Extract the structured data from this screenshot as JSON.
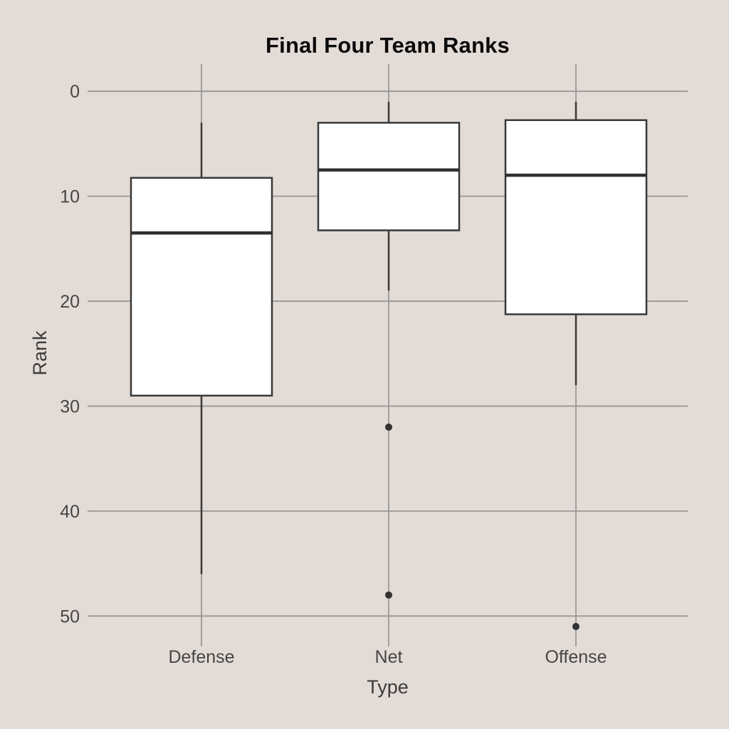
{
  "chart_data": {
    "type": "boxplot",
    "title": "Final Four Team Ranks",
    "xlabel": "Type",
    "ylabel": "Rank",
    "categories": [
      "Defense",
      "Net",
      "Offense"
    ],
    "y_ticks": [
      0,
      10,
      20,
      30,
      40,
      50
    ],
    "y_axis_reversed": true,
    "ylim": [
      -2.6,
      52.9
    ],
    "grid": "on",
    "series": [
      {
        "category": "Defense",
        "whisker_min": 3,
        "q1": 8.25,
        "median": 13.5,
        "q3": 29,
        "whisker_max": 46,
        "outliers": []
      },
      {
        "category": "Net",
        "whisker_min": 1,
        "q1": 3,
        "median": 7.5,
        "q3": 13.25,
        "whisker_max": 19,
        "outliers": [
          32,
          48
        ]
      },
      {
        "category": "Offense",
        "whisker_min": 1,
        "q1": 2.75,
        "median": 8,
        "q3": 21.25,
        "whisker_max": 28,
        "outliers": [
          51
        ]
      }
    ],
    "colors": {
      "background": "#e3dbd6",
      "gridline": "#989898",
      "box_stroke": "#383838",
      "box_fill": "#ffffff",
      "median": "#2f2f2f",
      "outlier": "#333333",
      "tick_label": "#464646"
    }
  }
}
